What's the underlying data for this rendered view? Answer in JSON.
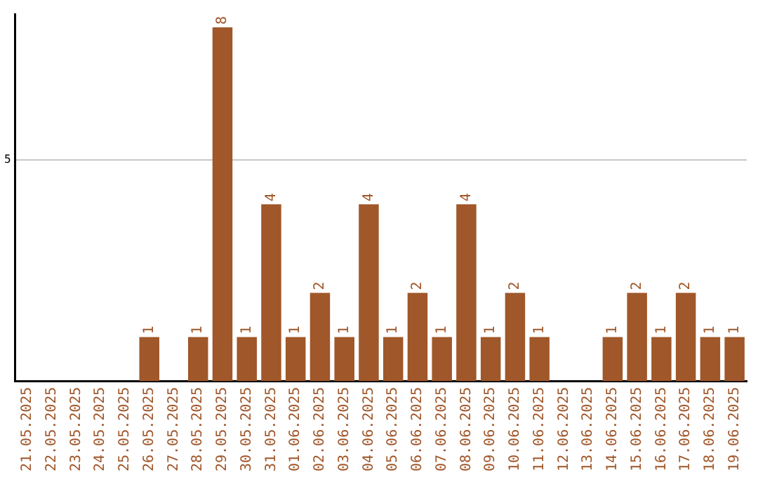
{
  "chart_data": {
    "type": "bar",
    "categories": [
      "21.05.2025",
      "22.05.2025",
      "23.05.2025",
      "24.05.2025",
      "25.05.2025",
      "26.05.2025",
      "27.05.2025",
      "28.05.2025",
      "29.05.2025",
      "30.05.2025",
      "31.05.2025",
      "01.06.2025",
      "02.06.2025",
      "03.06.2025",
      "04.06.2025",
      "05.06.2025",
      "06.06.2025",
      "07.06.2025",
      "08.06.2025",
      "09.06.2025",
      "10.06.2025",
      "11.06.2025",
      "12.06.2025",
      "13.06.2025",
      "14.06.2025",
      "15.06.2025",
      "16.06.2025",
      "17.06.2025",
      "18.06.2025",
      "19.06.2025"
    ],
    "values": [
      0,
      0,
      0,
      0,
      0,
      1,
      0,
      1,
      8,
      1,
      4,
      1,
      2,
      1,
      4,
      1,
      2,
      1,
      4,
      1,
      2,
      1,
      0,
      0,
      1,
      2,
      1,
      2,
      1,
      1
    ],
    "value_labels": [
      null,
      null,
      null,
      null,
      null,
      "1",
      null,
      "1",
      "8",
      "1",
      "4",
      "1",
      "2",
      "1",
      "4",
      "1",
      "2",
      "1",
      "4",
      "1",
      "2",
      "1",
      null,
      null,
      "1",
      "2",
      "1",
      "2",
      "1",
      "1"
    ],
    "color": "#a0572a",
    "ylim": [
      0,
      8.3
    ],
    "yticks": [
      5
    ],
    "grid": "y",
    "legend": false
  }
}
